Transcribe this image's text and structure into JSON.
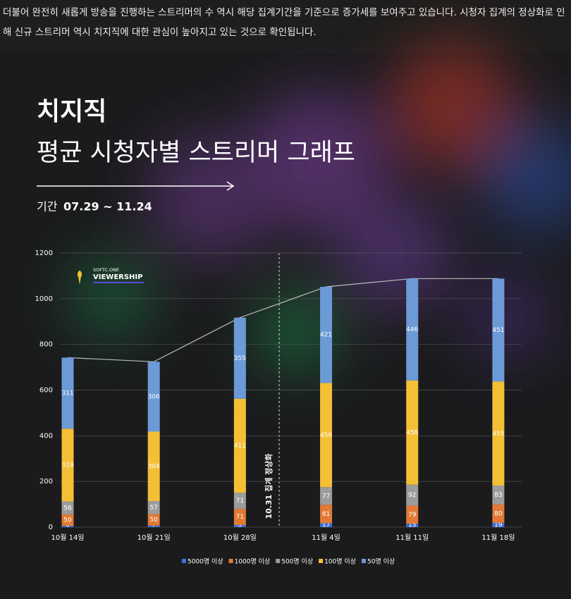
{
  "intro": "더불어 완전히 새롭게 방송을 진행하는 스트리머의 수 역시 해당 집계기간을 기준으로 증가세를 보여주고 있습니다. 시청자 집계의 정상화로 인해 신규 스트리머 역시 치지직에 대한 관심이 높아지고 있는 것으로 확인됩니다.",
  "chart_data": {
    "type": "stacked_bar",
    "title": "치지직",
    "subtitle": "평균 시청자별 스트리머 그래프",
    "period_label": "기간",
    "period": "07.29 ~ 11.24",
    "logo": {
      "top": "SOFTC.ONE",
      "bottom": "VIEWERSHIP"
    },
    "annotation": "10.31 집계 정상화",
    "categories": [
      "10월 14일",
      "10월 21일",
      "10월 28일",
      "11월 4일",
      "11월 11일",
      "11월 18일"
    ],
    "series": [
      {
        "name": "5000명 이상",
        "color": "#3f6fd4",
        "values": [
          6,
          7,
          9,
          17,
          15,
          19
        ]
      },
      {
        "name": "1000명 이상",
        "color": "#e27a36",
        "values": [
          50,
          50,
          71,
          81,
          79,
          80
        ]
      },
      {
        "name": "500명 이상",
        "color": "#9c9c9c",
        "values": [
          56,
          57,
          71,
          77,
          92,
          83
        ]
      },
      {
        "name": "100명 이상",
        "color": "#f3bf35",
        "values": [
          319,
          304,
          411,
          456,
          456,
          455
        ]
      },
      {
        "name": "50명 이상",
        "color": "#6c9ad6",
        "values": [
          311,
          306,
          355,
          421,
          446,
          451
        ]
      }
    ],
    "ylim": [
      0,
      1200
    ],
    "yticks": [
      0,
      200,
      400,
      600,
      800,
      1000,
      1200
    ],
    "grid": true
  }
}
